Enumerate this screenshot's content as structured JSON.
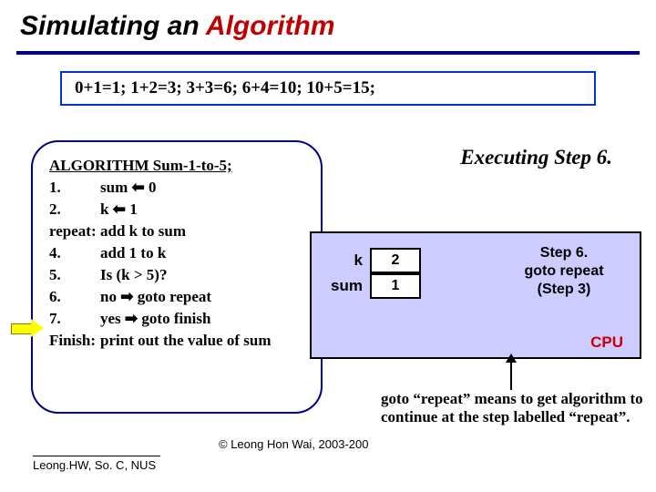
{
  "title": {
    "part1": "Simulating an ",
    "part2": "Algorithm"
  },
  "colors": {
    "titleRed": "#c00000",
    "underline": "#000080",
    "boxBorder": "#0033cc",
    "cpuBg": "#ccccff",
    "cpuLabel": "#cc0000",
    "arrowFill": "#ffff00"
  },
  "additions": "0+1=1;  1+2=3;  3+3=6;  6+4=10;  10+5=15;",
  "algoHeader": "ALGORITHM Sum-1-to-5;",
  "lines": [
    {
      "n": "1.",
      "t": "sum ⬅ 0"
    },
    {
      "n": "2.",
      "t": "k ⬅ 1"
    },
    {
      "n": "repeat:",
      "t": "add k to sum"
    },
    {
      "n": "4.",
      "t": "add 1 to k"
    },
    {
      "n": "5.",
      "t": "Is (k > 5)?"
    },
    {
      "n": "6.",
      "t": "  no ➡ goto repeat"
    },
    {
      "n": "7.",
      "t": "  yes ➡ goto finish"
    },
    {
      "n": "Finish:",
      "t": "print out the value of sum"
    }
  ],
  "execTitle": "Executing Step 6.",
  "vars": {
    "kLabel": "k",
    "kVal": "2",
    "sumLabel": "sum",
    "sumVal": "1"
  },
  "stepHint": {
    "l1": "Step 6.",
    "l2": "goto repeat",
    "l3": "(Step 3)"
  },
  "cpuLabel": "CPU",
  "note": "goto “repeat” means to get algorithm to continue at the step labelled “repeat”.",
  "copyright": "© Leong Hon Wai, 2003-200",
  "footer": "Leong.HW, So. C, NUS"
}
